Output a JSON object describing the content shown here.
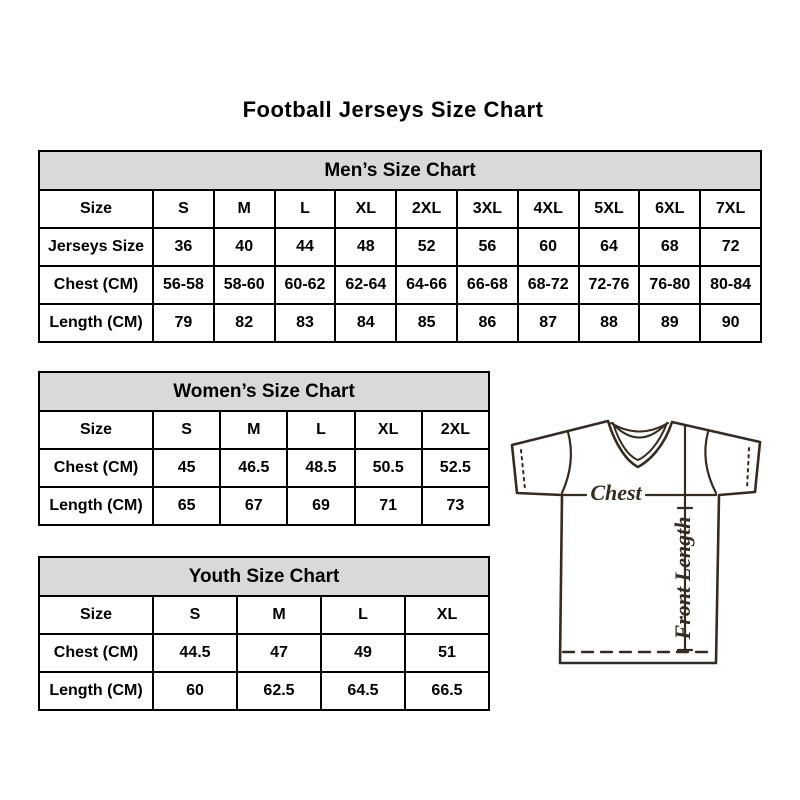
{
  "page": {
    "title": "Football Jerseys Size Chart"
  },
  "tables": {
    "mens": {
      "title": "Men’s Size Chart",
      "rows": [
        [
          "Size",
          "S",
          "M",
          "L",
          "XL",
          "2XL",
          "3XL",
          "4XL",
          "5XL",
          "6XL",
          "7XL"
        ],
        [
          "Jerseys Size",
          "36",
          "40",
          "44",
          "48",
          "52",
          "56",
          "60",
          "64",
          "68",
          "72"
        ],
        [
          "Chest (CM)",
          "56-58",
          "58-60",
          "60-62",
          "62-64",
          "64-66",
          "66-68",
          "68-72",
          "72-76",
          "76-80",
          "80-84"
        ],
        [
          "Length (CM)",
          "79",
          "82",
          "83",
          "84",
          "85",
          "86",
          "87",
          "88",
          "89",
          "90"
        ]
      ]
    },
    "womens": {
      "title": "Women’s Size Chart",
      "rows": [
        [
          "Size",
          "S",
          "M",
          "L",
          "XL",
          "2XL"
        ],
        [
          "Chest (CM)",
          "45",
          "46.5",
          "48.5",
          "50.5",
          "52.5"
        ],
        [
          "Length (CM)",
          "65",
          "67",
          "69",
          "71",
          "73"
        ]
      ]
    },
    "youth": {
      "title": "Youth Size Chart",
      "rows": [
        [
          "Size",
          "S",
          "M",
          "L",
          "XL"
        ],
        [
          "Chest (CM)",
          "44.5",
          "47",
          "49",
          "51"
        ],
        [
          "Length (CM)",
          "60",
          "62.5",
          "64.5",
          "66.5"
        ]
      ]
    }
  },
  "diagram": {
    "chest_label": "Chest",
    "front_length_label": "Front Length"
  },
  "colors": {
    "header_bg": "#d9d9d9",
    "border": "#000000",
    "text": "#000000",
    "jersey_line": "#362b21"
  }
}
